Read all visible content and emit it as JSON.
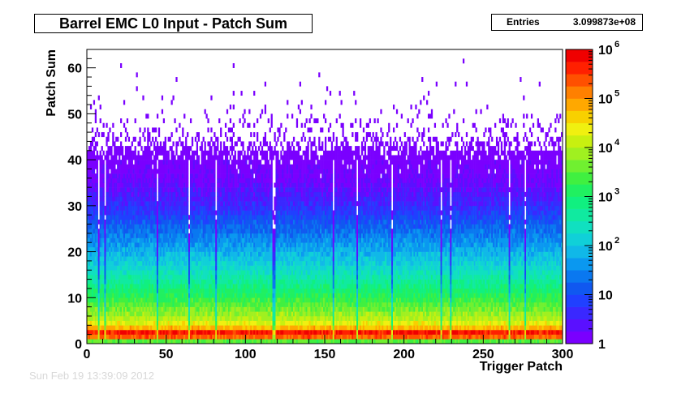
{
  "title": "Barrel EMC L0 Input - Patch Sum",
  "stats": {
    "label": "Entries",
    "value": "3.099873e+08"
  },
  "footer_text": "Sun Feb 19 13:39:09 2012",
  "colors": {
    "palette": [
      "#7a00ff",
      "#5a10ff",
      "#3a28ff",
      "#2040ff",
      "#1058f0",
      "#0a78f0",
      "#0a98f0",
      "#10b8e8",
      "#10d0d8",
      "#10e0c0",
      "#10eaa0",
      "#10f080",
      "#20f060",
      "#40f040",
      "#70f030",
      "#a0f020",
      "#c8f010",
      "#f0f010",
      "#f8d000",
      "#ffa800",
      "#ff8000",
      "#ff5000",
      "#ff2000",
      "#f00000"
    ]
  },
  "chart_data": {
    "type": "heatmap",
    "title": "Barrel EMC L0 Input - Patch Sum",
    "xlabel": "Trigger Patch",
    "ylabel": "Patch Sum",
    "xlim": [
      0,
      300
    ],
    "ylim": [
      0,
      64
    ],
    "x_ticks": [
      0,
      50,
      100,
      150,
      200,
      250,
      300
    ],
    "y_ticks": [
      0,
      10,
      20,
      30,
      40,
      50,
      60
    ],
    "z_scale": "log",
    "zlim": [
      1,
      1000000
    ],
    "z_ticks": [
      {
        "value": 1,
        "label": "1"
      },
      {
        "value": 10,
        "label": "10"
      },
      {
        "value": 100,
        "label": "10",
        "exp": "2"
      },
      {
        "value": 1000,
        "label": "10",
        "exp": "3"
      },
      {
        "value": 10000,
        "label": "10",
        "exp": "4"
      },
      {
        "value": 100000,
        "label": "10",
        "exp": "5"
      },
      {
        "value": 1000000,
        "label": "10",
        "exp": "6"
      }
    ],
    "entries": 309987300,
    "nbins_x": 300,
    "nbins_y": 64,
    "bin_profile": [
      {
        "y": 0,
        "z": 3000
      },
      {
        "y": 1,
        "z": 200000
      },
      {
        "y": 2,
        "z": 500000
      },
      {
        "y": 3,
        "z": 60000
      },
      {
        "y": 4,
        "z": 20000
      },
      {
        "y": 5,
        "z": 10000
      },
      {
        "y": 8,
        "z": 3000
      },
      {
        "y": 12,
        "z": 700
      },
      {
        "y": 16,
        "z": 180
      },
      {
        "y": 20,
        "z": 60
      },
      {
        "y": 25,
        "z": 15
      },
      {
        "y": 30,
        "z": 4
      },
      {
        "y": 35,
        "z": 1.6
      },
      {
        "y": 40,
        "z": 1
      }
    ],
    "legend": "right"
  }
}
